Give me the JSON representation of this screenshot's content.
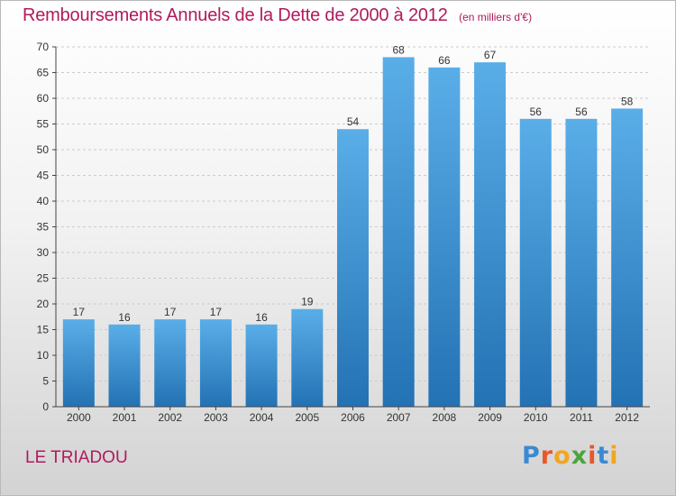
{
  "header": {
    "title": "Remboursements Annuels de la Dette de 2000 à 2012",
    "subtitle": "(en milliers d'€)"
  },
  "footer": {
    "commune": "LE TRIADOU",
    "logo_letters": [
      "P",
      "r",
      "o",
      "x",
      "i",
      "t",
      "i"
    ],
    "logo_colors": [
      "#3a8ad1",
      "#e8572a",
      "#f2a51f",
      "#4aa53f",
      "#e8572a",
      "#3a8ad1",
      "#f2a51f"
    ]
  },
  "colors": {
    "bar_light": "#5aaee8",
    "bar_dark": "#2372b4",
    "title": "#b01a5e",
    "axis": "#444444",
    "grid": "#cccccc"
  },
  "chart_data": {
    "type": "bar",
    "title": "Remboursements Annuels de la Dette de 2000 à 2012",
    "subtitle": "(en milliers d'€)",
    "xlabel": "",
    "ylabel": "",
    "categories": [
      "2000",
      "2001",
      "2002",
      "2003",
      "2004",
      "2005",
      "2006",
      "2007",
      "2008",
      "2009",
      "2010",
      "2011",
      "2012"
    ],
    "values": [
      17,
      16,
      17,
      17,
      16,
      19,
      54,
      68,
      66,
      67,
      56,
      56,
      58
    ],
    "ylim": [
      0,
      70
    ],
    "yticks": [
      0,
      5,
      10,
      15,
      20,
      25,
      30,
      35,
      40,
      45,
      50,
      55,
      60,
      65,
      70
    ],
    "grid": "horizontal dashed",
    "data_labels": true
  }
}
